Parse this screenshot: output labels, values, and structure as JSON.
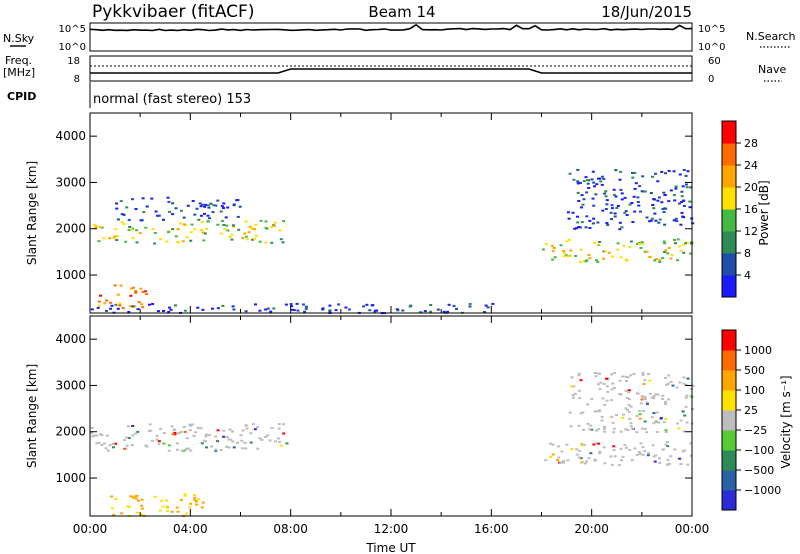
{
  "header": {
    "station": "Pykkvibaer (fitACF)",
    "beam": "Beam 14",
    "date": "18/Jun/2015"
  },
  "strip_labels": {
    "nsky": "N.Sky",
    "nsky_ticks": [
      "10^5",
      "10^0"
    ],
    "nsearch": "N.Search",
    "nsearch_ticks": [
      "10^5",
      "10^0"
    ],
    "freq": "Freq.",
    "freq_unit": "[MHz]",
    "freq_ticks": [
      "18",
      "8"
    ],
    "nave": "Nave",
    "nave_ticks": [
      "60",
      "0"
    ],
    "cpid": "CPID",
    "cpid_value": "normal (fast stereo) 153"
  },
  "colors": {
    "power": [
      "#1a1aff",
      "#1f4ea8",
      "#2e8b57",
      "#44b944",
      "#ffe000",
      "#ffa500",
      "#ff6a00",
      "#ff0000"
    ],
    "velocity": [
      "#2b2bd6",
      "#2a62a8",
      "#2e8b57",
      "#55cc33",
      "#bdbdbd",
      "#ffe000",
      "#ffa500",
      "#ff6a00",
      "#ff0000"
    ]
  },
  "chart_data": [
    {
      "type": "heatmap",
      "quantity": "power",
      "ylabel": "Slant Range [km]",
      "ylim": [
        180,
        4500
      ],
      "yticks": [
        "1000",
        "2000",
        "3000",
        "4000"
      ],
      "xlim": [
        0,
        24
      ],
      "colorbar_label": "Power [dB]",
      "colorbar_ticks": [
        "4",
        "8",
        "12",
        "16",
        "20",
        "24",
        "28"
      ],
      "bands": [
        {
          "x": [
            0,
            8
          ],
          "range": [
            1700,
            2200
          ],
          "level": 4
        },
        {
          "x": [
            0.3,
            2.2
          ],
          "range": [
            300,
            800
          ],
          "level": 6
        },
        {
          "x": [
            1,
            6
          ],
          "range": [
            2200,
            2700
          ],
          "level": 1
        },
        {
          "x": [
            0,
            16
          ],
          "range": [
            200,
            400
          ],
          "level": 1
        },
        {
          "x": [
            18,
            24
          ],
          "range": [
            1300,
            1800
          ],
          "level": 4
        },
        {
          "x": [
            19,
            24
          ],
          "range": [
            2000,
            3300
          ],
          "level": 1
        }
      ]
    },
    {
      "type": "heatmap",
      "quantity": "velocity",
      "ylabel": "Slant Range [km]",
      "ylim": [
        180,
        4500
      ],
      "yticks": [
        "1000",
        "2000",
        "3000",
        "4000"
      ],
      "xlim": [
        0,
        24
      ],
      "xticks": [
        "00:00",
        "04:00",
        "08:00",
        "12:00",
        "16:00",
        "20:00",
        "00:00"
      ],
      "xlabel": "Time UT",
      "colorbar_label": "Velocity [m s⁻¹]",
      "colorbar_ticks": [
        "1000",
        "500",
        "100",
        "25",
        "−25",
        "−100",
        "−500",
        "−1000"
      ],
      "bands": [
        {
          "x": [
            0,
            8
          ],
          "range": [
            1600,
            2200
          ],
          "level": 0
        },
        {
          "x": [
            0.8,
            4.5
          ],
          "range": [
            200,
            700
          ],
          "level": -2
        },
        {
          "x": [
            18,
            24
          ],
          "range": [
            1300,
            1800
          ],
          "level": 0
        },
        {
          "x": [
            19,
            24
          ],
          "range": [
            2000,
            3300
          ],
          "level": 0
        }
      ]
    }
  ]
}
